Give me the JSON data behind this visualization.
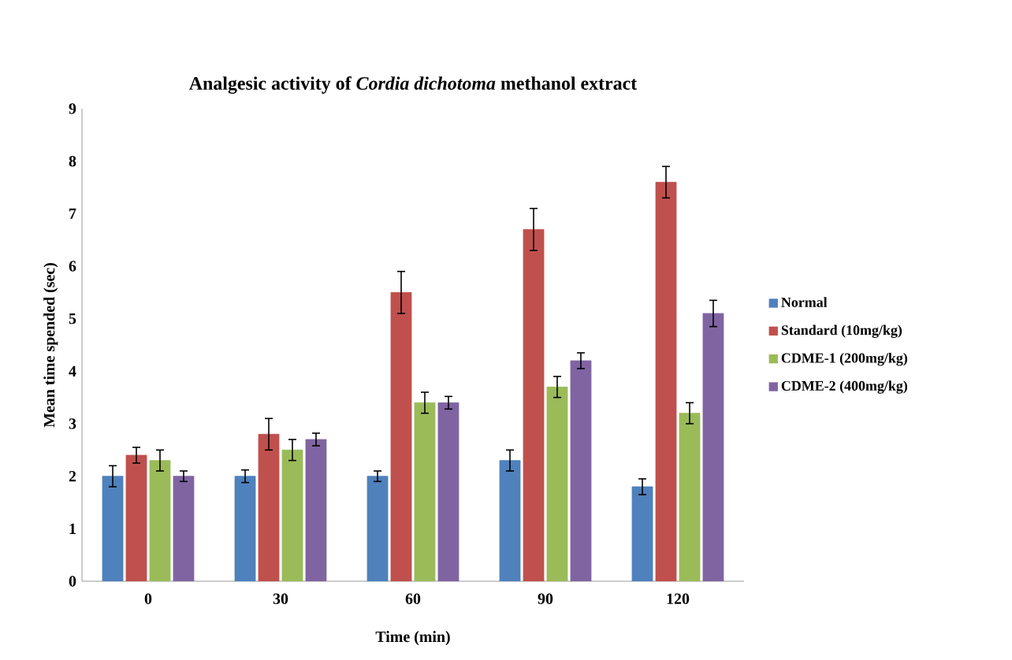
{
  "chart_data": {
    "type": "bar",
    "title": "Analgesic activity of *Cordia dichotoma* methanol extract",
    "xlabel": "Time (min)",
    "ylabel": "Mean time spended (sec)",
    "categories": [
      "0",
      "30",
      "60",
      "90",
      "120"
    ],
    "ylim": [
      0,
      9
    ],
    "yticks": [
      0,
      1,
      2,
      3,
      4,
      5,
      6,
      7,
      8,
      9
    ],
    "legend": "right",
    "grid": false,
    "series": [
      {
        "name": "Normal",
        "color": "#4f81bd",
        "values": [
          2.0,
          2.0,
          2.0,
          2.3,
          1.8
        ],
        "errors": [
          0.2,
          0.12,
          0.1,
          0.2,
          0.15
        ]
      },
      {
        "name": "Standard (10mg/kg)",
        "color": "#c0504d",
        "values": [
          2.4,
          2.8,
          5.5,
          6.7,
          7.6
        ],
        "errors": [
          0.15,
          0.3,
          0.4,
          0.4,
          0.3
        ]
      },
      {
        "name": "CDME-1 (200mg/kg)",
        "color": "#9bbb59",
        "values": [
          2.3,
          2.5,
          3.4,
          3.7,
          3.2
        ],
        "errors": [
          0.2,
          0.2,
          0.2,
          0.2,
          0.2
        ]
      },
      {
        "name": "CDME-2 (400mg/kg)",
        "color": "#8064a2",
        "values": [
          2.0,
          2.7,
          3.4,
          4.2,
          5.1
        ],
        "errors": [
          0.1,
          0.12,
          0.12,
          0.15,
          0.25
        ]
      }
    ]
  }
}
